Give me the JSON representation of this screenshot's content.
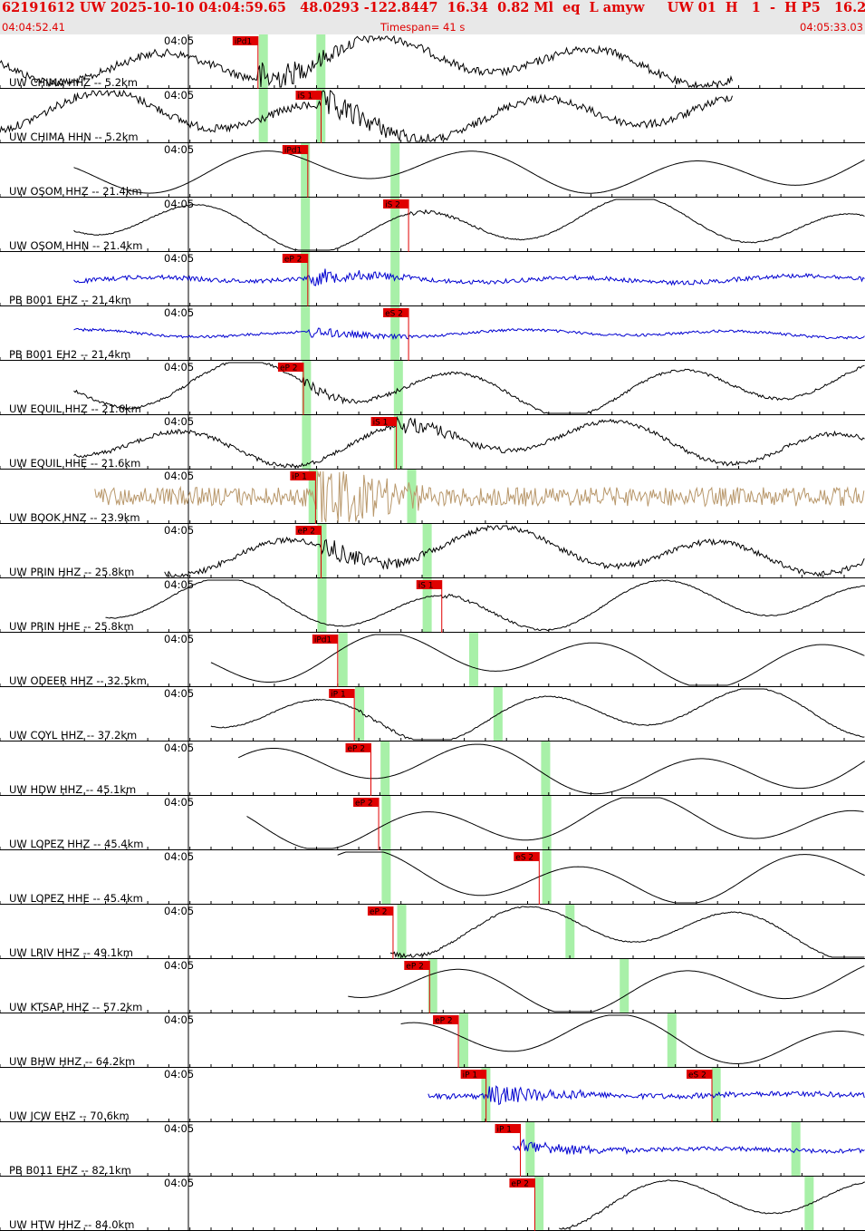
{
  "header": {
    "title": "62191612 UW 2025-10-10 04:04:59.65   48.0293 -122.8447  16.34  0.82 Ml  eq  L amyw     UW 01  H   1  -  H P5   16.23  0.11",
    "start_time": "04:04:52.41",
    "timespan": "Timespan=  41 s",
    "end_time": "04:05:33.03"
  },
  "colors": {
    "header_text": "#e00000",
    "header_bg": "#e8e8e8",
    "pick_marker": "#e00000",
    "theoretical_window": "#a8f0a8",
    "trace_broadband": "#000000",
    "trace_short_period": "#0000d0",
    "trace_strong_motion": "#b8976a"
  },
  "chart_data": {
    "type": "line",
    "time_range_s": [
      0,
      41
    ],
    "tick_label": "04:05",
    "grid": false,
    "traces": [
      {
        "label": "UW CHIMA HHZ -- 5.2km",
        "color": "black",
        "start": 0,
        "end": 28.7,
        "amp": 0.3,
        "noise": 0.15,
        "onset": 23.3,
        "picks": [
          {
            "label": "iPd1",
            "t": 23.3,
            "phase": "P"
          }
        ],
        "windows": [
          23.7,
          28.9
        ]
      },
      {
        "label": "UW CHIMA HHN -- 5.2km",
        "color": "black",
        "start": 0,
        "end": 28.7,
        "amp": 0.3,
        "noise": 0.15,
        "onset": 29.0,
        "picks": [
          {
            "label": "iS 1",
            "t": 29.0,
            "phase": "S"
          }
        ],
        "windows": [
          23.7,
          28.9
        ]
      },
      {
        "label": "UW OSOM HHZ -- 21.4km",
        "color": "black",
        "start": 3.5,
        "end": 30.5,
        "amp": 0.3,
        "noise": 0.0,
        "onset": 27.8,
        "picks": [
          {
            "label": "iPd1",
            "t": 27.8,
            "phase": "P"
          }
        ],
        "windows": [
          27.5,
          35.6
        ]
      },
      {
        "label": "UW OSOM HHN -- 21.4km",
        "color": "black",
        "start": 3.5,
        "end": 30.5,
        "amp": 0.35,
        "noise": 0.02,
        "onset": 36.9,
        "picks": [
          {
            "label": "iS 2",
            "t": 36.9,
            "phase": "S"
          }
        ],
        "windows": [
          27.5,
          35.6
        ]
      },
      {
        "label": "PB B001 EHZ -- 21.4km",
        "color": "blue",
        "start": 3.5,
        "end": 30.5,
        "amp": 0.05,
        "noise": 0.08,
        "onset": 27.8,
        "picks": [
          {
            "label": "eP 2",
            "t": 27.8,
            "phase": "P"
          }
        ],
        "windows": [
          27.5,
          35.6
        ]
      },
      {
        "label": "PB B001 EH2 -- 21.4km",
        "color": "blue",
        "start": 3.5,
        "end": 30.5,
        "amp": 0.05,
        "noise": 0.05,
        "onset": 27.8,
        "picks": [
          {
            "label": "eS 2",
            "t": 36.9,
            "phase": "S"
          }
        ],
        "windows": [
          27.5,
          35.6
        ]
      },
      {
        "label": "UW EQUIL HHZ -- 21.6km",
        "color": "black",
        "start": 3.5,
        "end": 30.5,
        "amp": 0.35,
        "noise": 0.05,
        "onset": 27.4,
        "picks": [
          {
            "label": "eP 2",
            "t": 27.4,
            "phase": "P"
          }
        ],
        "windows": [
          27.6,
          35.9
        ]
      },
      {
        "label": "UW EQUIL HHE -- 21.6km",
        "color": "black",
        "start": 3.5,
        "end": 30.5,
        "amp": 0.3,
        "noise": 0.08,
        "onset": 35.8,
        "picks": [
          {
            "label": "iS 1",
            "t": 35.8,
            "phase": "S"
          }
        ],
        "windows": [
          27.6,
          35.9
        ]
      },
      {
        "label": "UW BOOK HNZ -- 23.9km",
        "color": "tan",
        "start": 4.5,
        "end": 30.0,
        "amp": 0.0,
        "noise": 0.35,
        "onset": 28.5,
        "picks": [
          {
            "label": "iP 1",
            "t": 28.5,
            "phase": "P"
          }
        ],
        "windows": [
          28.2,
          37.1
        ]
      },
      {
        "label": "UW PRIN HHZ -- 25.8km",
        "color": "black",
        "start": 7.8,
        "end": 31.2,
        "amp": 0.3,
        "noise": 0.1,
        "onset": 29.0,
        "picks": [
          {
            "label": "eP 2",
            "t": 29.0,
            "phase": "P"
          }
        ],
        "windows": [
          29.0,
          38.5
        ]
      },
      {
        "label": "UW PRIN HHE -- 25.8km",
        "color": "black",
        "start": 5.0,
        "end": 31.2,
        "amp": 0.35,
        "noise": 0.02,
        "onset": 39.9,
        "picks": [
          {
            "label": "iS 1",
            "t": 39.9,
            "phase": "S"
          }
        ],
        "windows": [
          29.0,
          38.5
        ]
      },
      {
        "label": "UW ODEER HHZ -- 32.5km",
        "color": "black",
        "start": 10.0,
        "end": 31.8,
        "amp": 0.35,
        "noise": 0.0,
        "onset": 30.5,
        "picks": [
          {
            "label": "iPd1",
            "t": 30.5,
            "phase": "P"
          }
        ],
        "windows": [
          30.9,
          42.7
        ]
      },
      {
        "label": "UW COYL HHZ -- 37.2km",
        "color": "black",
        "start": 10.0,
        "end": 32.5,
        "amp": 0.35,
        "noise": 0.02,
        "onset": 32.0,
        "picks": [
          {
            "label": "iP 1",
            "t": 32.0,
            "phase": "P"
          }
        ],
        "windows": [
          32.4,
          44.9
        ]
      },
      {
        "label": "UW HDW HHZ -- 45.1km",
        "color": "black",
        "start": 11.3,
        "end": 33.8,
        "amp": 0.35,
        "noise": 0.0,
        "onset": 33.5,
        "picks": [
          {
            "label": "eP 2",
            "t": 33.5,
            "phase": "P"
          }
        ],
        "windows": [
          34.7,
          49.2
        ]
      },
      {
        "label": "UW LOPEZ HHZ -- 45.4km",
        "color": "black",
        "start": 11.7,
        "end": 33.8,
        "amp": 0.35,
        "noise": 0.0,
        "onset": 34.2,
        "picks": [
          {
            "label": "eP 2",
            "t": 34.2,
            "phase": "P"
          }
        ],
        "windows": [
          34.8,
          49.3
        ]
      },
      {
        "label": "UW LOPEZ HHE -- 45.4km",
        "color": "black",
        "start": 16.0,
        "end": 33.8,
        "amp": 0.35,
        "noise": 0.0,
        "onset": 48.7,
        "picks": [
          {
            "label": "eS 2",
            "t": 48.7,
            "phase": "S"
          }
        ],
        "windows": [
          34.8,
          49.3
        ]
      },
      {
        "label": "UW LRIV HHZ -- 49.1km",
        "color": "black",
        "start": 18.5,
        "end": 33.8,
        "amp": 0.35,
        "noise": 0.02,
        "onset": 35.5,
        "picks": [
          {
            "label": "eP 2",
            "t": 35.5,
            "phase": "P"
          }
        ],
        "windows": [
          36.2,
          51.4
        ]
      },
      {
        "label": "UW KTSAP HHZ -- 57.2km",
        "color": "black",
        "start": 16.5,
        "end": 35.5,
        "amp": 0.35,
        "noise": 0.0,
        "onset": 38.8,
        "picks": [
          {
            "label": "eP 2",
            "t": 38.8,
            "phase": "P"
          }
        ],
        "windows": [
          39.0,
          56.3
        ]
      },
      {
        "label": "UW BHW HHZ -- 64.2km",
        "color": "black",
        "start": 19.0,
        "end": 36.3,
        "amp": 0.35,
        "noise": 0.0,
        "onset": 41.4,
        "picks": [
          {
            "label": "eP 2",
            "t": 41.4,
            "phase": "P"
          }
        ],
        "windows": [
          41.8,
          60.6
        ]
      },
      {
        "label": "UW JCW EHZ -- 70.6km",
        "color": "blue",
        "start": 20.3,
        "end": 37.2,
        "amp": 0.02,
        "noise": 0.1,
        "onset": 43.9,
        "picks": [
          {
            "label": "iP 1",
            "t": 43.9,
            "phase": "P"
          },
          {
            "label": "eS 2",
            "t": 64.3,
            "phase": "S"
          }
        ],
        "windows": [
          43.8,
          64.6
        ]
      },
      {
        "label": "PB B011 EHZ -- 82.1km",
        "color": "blue",
        "start": 24.3,
        "end": 38.8,
        "amp": 0.02,
        "noise": 0.08,
        "onset": 47.0,
        "picks": [
          {
            "label": "iP 1",
            "t": 47.0,
            "phase": "P"
          }
        ],
        "windows": [
          47.8,
          71.8
        ]
      },
      {
        "label": "UW HTW HHZ -- 84.0km",
        "color": "black",
        "start": 26.5,
        "end": 39.5,
        "amp": 0.35,
        "noise": 0.02,
        "onset": 48.3,
        "picks": [
          {
            "label": "eP 2",
            "t": 48.3,
            "phase": "P"
          }
        ],
        "windows": [
          48.6,
          73.0
        ]
      }
    ]
  }
}
